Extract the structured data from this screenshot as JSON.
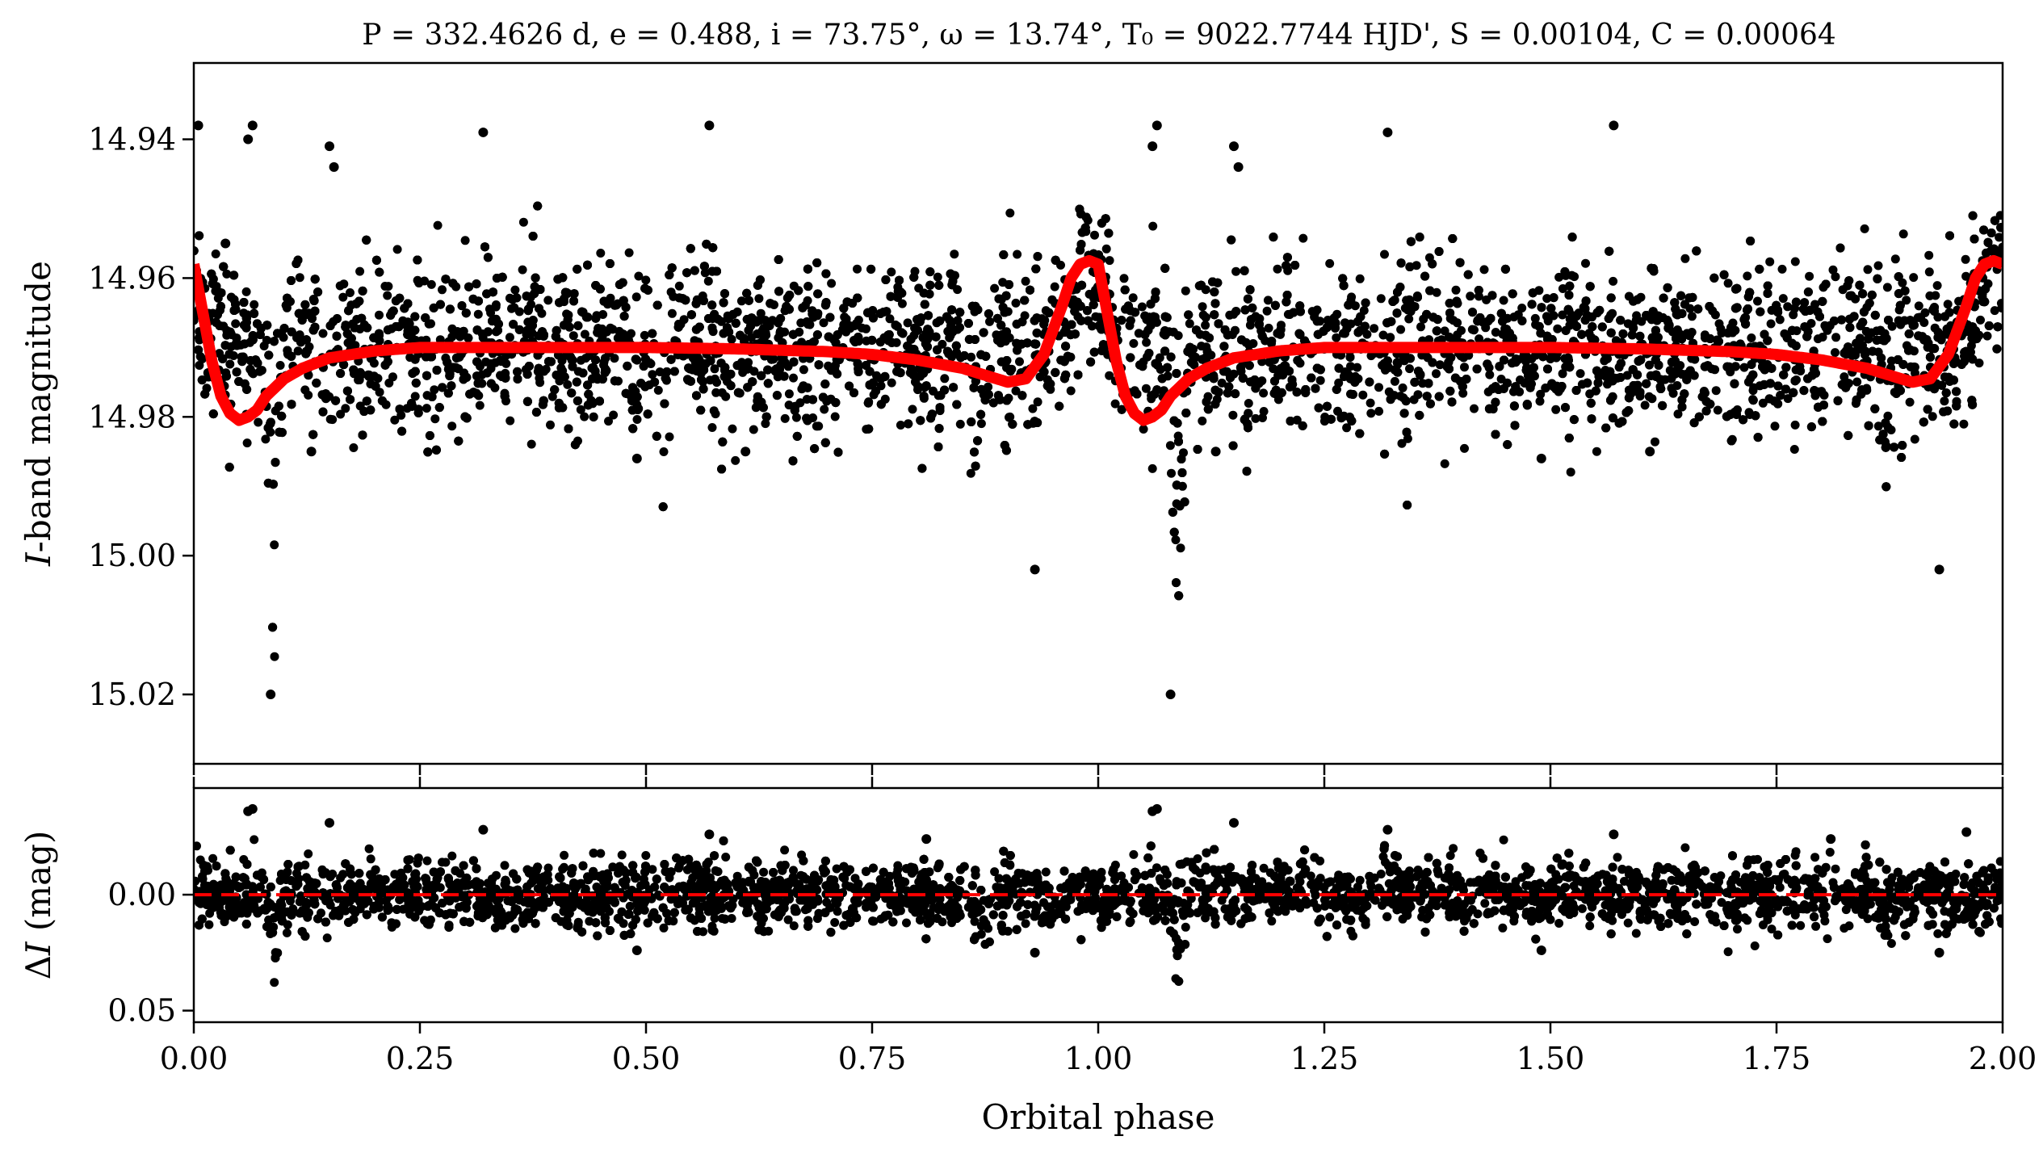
{
  "title": "P = 332.4626 d, e = 0.488, i = 73.75°, ω = 13.74°, T₀ = 9022.7744 HJD', S = 0.00104, C = 0.00064",
  "colors": {
    "points": "#000000",
    "model": "#ff0000",
    "residual_zero": "#ff0000",
    "axes": "#000000"
  },
  "chart_data": [
    {
      "type": "scatter",
      "panel": "top",
      "xlabel": "",
      "ylabel": "I-band magnitude",
      "xlim": [
        0.0,
        2.0
      ],
      "ylim": [
        15.03,
        14.929
      ],
      "y_inverted": true,
      "yticks": [
        "14.94",
        "14.96",
        "14.98",
        "15.00",
        "15.02"
      ],
      "ytick_values": [
        14.94,
        14.96,
        14.98,
        15.0,
        15.02
      ],
      "series": [
        {
          "kind": "points",
          "description_of_cloud": "Dense phase-folded photometry; baseline 14.970 with ~0.006 mag scatter; deep narrow dips near phase 0.09 and 1.09 reaching ~15.02; shallower dips near 0.87 and 1.87 reaching ~14.995; brightening near 0.99 and 1.99 to ~14.95",
          "baseline_mag": 14.97,
          "scatter_mag": 0.006,
          "n_points_shown": 9000,
          "outliers": [
            [
              0.005,
              14.938
            ],
            [
              0.035,
              14.955
            ],
            [
              0.06,
              14.94
            ],
            [
              0.065,
              14.938
            ],
            [
              0.085,
              15.02
            ],
            [
              0.15,
              14.941
            ],
            [
              0.155,
              14.944
            ],
            [
              0.32,
              14.939
            ],
            [
              0.57,
              14.938
            ],
            [
              0.93,
              15.002
            ],
            [
              1.06,
              14.941
            ],
            [
              1.065,
              14.938
            ],
            [
              1.08,
              15.02
            ],
            [
              1.15,
              14.941
            ],
            [
              1.155,
              14.944
            ],
            [
              1.32,
              14.939
            ],
            [
              1.57,
              14.938
            ],
            [
              1.93,
              15.002
            ],
            [
              0.49,
              14.986
            ],
            [
              0.61,
              14.985
            ],
            [
              0.13,
              14.985
            ],
            [
              1.13,
              14.985
            ],
            [
              1.49,
              14.986
            ],
            [
              1.61,
              14.985
            ]
          ]
        },
        {
          "kind": "model",
          "description": "Eccentric-orbit model curve",
          "x": [
            0.0,
            0.01,
            0.02,
            0.03,
            0.04,
            0.05,
            0.06,
            0.07,
            0.08,
            0.1,
            0.12,
            0.15,
            0.2,
            0.25,
            0.3,
            0.4,
            0.5,
            0.6,
            0.7,
            0.75,
            0.8,
            0.85,
            0.88,
            0.9,
            0.92,
            0.94,
            0.96,
            0.97,
            0.98,
            0.99,
            1.0,
            1.01,
            1.02,
            1.03,
            1.04,
            1.05,
            1.06,
            1.07,
            1.08,
            1.1,
            1.12,
            1.15,
            1.2,
            1.25,
            1.3,
            1.4,
            1.5,
            1.6,
            1.7,
            1.75,
            1.8,
            1.85,
            1.88,
            1.9,
            1.92,
            1.94,
            1.96,
            1.97,
            1.98,
            1.99,
            2.0
          ],
          "y": [
            14.958,
            14.965,
            14.972,
            14.977,
            14.9795,
            14.9805,
            14.98,
            14.979,
            14.977,
            14.9745,
            14.973,
            14.9715,
            14.9705,
            14.97,
            14.97,
            14.97,
            14.97,
            14.9702,
            14.9706,
            14.971,
            14.9718,
            14.973,
            14.9742,
            14.975,
            14.9745,
            14.971,
            14.964,
            14.96,
            14.958,
            14.9575,
            14.958,
            14.965,
            14.972,
            14.977,
            14.9795,
            14.9805,
            14.98,
            14.979,
            14.977,
            14.9745,
            14.973,
            14.9715,
            14.9705,
            14.97,
            14.97,
            14.97,
            14.97,
            14.9702,
            14.9706,
            14.971,
            14.9718,
            14.973,
            14.9742,
            14.975,
            14.9745,
            14.971,
            14.964,
            14.96,
            14.958,
            14.9575,
            14.958
          ]
        }
      ]
    },
    {
      "type": "scatter",
      "panel": "bottom",
      "xlabel": "Orbital phase",
      "ylabel": "ΔI (mag)",
      "xlim": [
        0.0,
        2.0
      ],
      "ylim": [
        0.055,
        -0.046
      ],
      "y_inverted": true,
      "xticks": [
        "0.00",
        "0.25",
        "0.50",
        "0.75",
        "1.00",
        "1.25",
        "1.50",
        "1.75",
        "2.00"
      ],
      "xtick_values": [
        0.0,
        0.25,
        0.5,
        0.75,
        1.0,
        1.25,
        1.5,
        1.75,
        2.0
      ],
      "yticks": [
        "0.00",
        "0.05"
      ],
      "ytick_values": [
        0.0,
        0.05
      ],
      "series": [
        {
          "kind": "points",
          "description_of_cloud": "Residuals centred on 0.00 with ~0.007 mag scatter; negative tail near phase 0.09 and 1.09 reaching ~0.044",
          "scatter_mag": 0.007,
          "n_points_shown": 9000,
          "outliers": [
            [
              0.06,
              -0.036
            ],
            [
              0.065,
              -0.037
            ],
            [
              0.15,
              -0.031
            ],
            [
              0.32,
              -0.028
            ],
            [
              0.57,
              -0.026
            ],
            [
              0.81,
              -0.024
            ],
            [
              1.06,
              -0.036
            ],
            [
              1.065,
              -0.037
            ],
            [
              1.15,
              -0.031
            ],
            [
              1.32,
              -0.028
            ],
            [
              1.57,
              -0.026
            ],
            [
              1.81,
              -0.024
            ],
            [
              1.96,
              -0.027
            ],
            [
              0.49,
              0.024
            ],
            [
              1.49,
              0.024
            ],
            [
              0.93,
              0.025
            ],
            [
              1.93,
              0.025
            ]
          ]
        },
        {
          "kind": "reference_line",
          "y": 0.0,
          "style": "dashed"
        }
      ]
    }
  ]
}
